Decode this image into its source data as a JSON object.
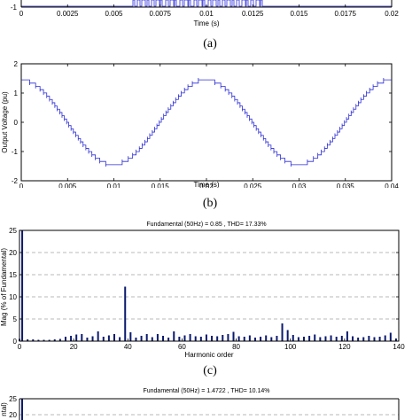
{
  "captions": {
    "a": "(a)",
    "b": "(b)",
    "c": "(c)"
  },
  "chart_data": [
    {
      "id": "a",
      "type": "line",
      "partial": true,
      "xlabel": "Time (s)",
      "xlim": [
        0,
        0.02
      ],
      "xticks": [
        "0",
        "0.0025",
        "0.005",
        "0.0075",
        "0.01",
        "0.0125",
        "0.015",
        "0.0175",
        "0.02"
      ],
      "yticks_visible": [
        "-1"
      ],
      "series_color": "#2b2bd6"
    },
    {
      "id": "b",
      "type": "line",
      "xlabel": "Time (s)",
      "ylabel": "Output Voltage (pu)",
      "xlim": [
        0,
        0.04
      ],
      "ylim": [
        -2,
        2
      ],
      "xticks": [
        "0",
        "0.005",
        "0.01",
        "0.015",
        "0.02",
        "0.025",
        "0.03",
        "0.035",
        "0.04"
      ],
      "yticks": [
        "-2",
        "-1",
        "0",
        "1",
        "2"
      ],
      "frequency_hz": 50,
      "amplitude_pu": 1.45,
      "levels_per_half_amplitude": 13,
      "series_color": "#2b2bd6"
    },
    {
      "id": "c",
      "type": "bar",
      "title": "Fundamental (50Hz) = 0.85 , THD= 17.33%",
      "xlabel": "Harmonic order",
      "ylabel": "Mag (% of Fundamental)",
      "xlim": [
        0,
        140
      ],
      "ylim": [
        0,
        25
      ],
      "xticks": [
        "0",
        "20",
        "40",
        "60",
        "80",
        "100",
        "120",
        "140"
      ],
      "yticks": [
        "0",
        "5",
        "10",
        "15",
        "20",
        "25"
      ],
      "grid": "dashed horizontal",
      "bar_color": "#0b1a6e",
      "harmonic_order": [
        0,
        1,
        3,
        5,
        7,
        9,
        11,
        13,
        15,
        17,
        19,
        21,
        23,
        25,
        27,
        29,
        31,
        33,
        35,
        37,
        39,
        41,
        43,
        45,
        47,
        49,
        51,
        53,
        55,
        57,
        59,
        61,
        63,
        65,
        67,
        69,
        71,
        73,
        75,
        77,
        79,
        81,
        83,
        85,
        87,
        89,
        91,
        93,
        95,
        97,
        99,
        101,
        103,
        105,
        107,
        109,
        111,
        113,
        115,
        117,
        119,
        121,
        123,
        125,
        127,
        129,
        131,
        133,
        135,
        137,
        139
      ],
      "magnitude": [
        0.5,
        25,
        0.4,
        0.4,
        0.3,
        0.3,
        0.3,
        0.4,
        0.5,
        1.0,
        1.2,
        1.5,
        1.6,
        0.8,
        1.1,
        2.2,
        1.0,
        1.3,
        1.6,
        0.9,
        12.3,
        2.0,
        0.8,
        1.2,
        1.6,
        0.9,
        1.6,
        1.2,
        0.8,
        2.2,
        1.0,
        1.3,
        1.6,
        1.1,
        1.0,
        1.5,
        1.2,
        1.1,
        1.4,
        1.6,
        2.1,
        1.1,
        1.0,
        1.3,
        0.8,
        1.0,
        1.3,
        0.9,
        1.2,
        4.0,
        2.5,
        1.4,
        0.9,
        1.0,
        1.2,
        1.5,
        0.9,
        1.1,
        1.3,
        1.0,
        1.2,
        2.2,
        1.1,
        0.8,
        0.9,
        1.2,
        0.9,
        1.0,
        1.3,
        1.9,
        0.6
      ]
    },
    {
      "id": "d",
      "type": "bar",
      "partial": true,
      "title": "Fundamental (50Hz) = 1.4722 , THD= 10.14%",
      "ylabel_fragment": "ntal)",
      "yticks_visible": [
        "25",
        "20"
      ],
      "grid": "dashed horizontal",
      "bar_color": "#0b1a6e",
      "harmonic_order": [
        1
      ],
      "magnitude": [
        25
      ]
    }
  ]
}
